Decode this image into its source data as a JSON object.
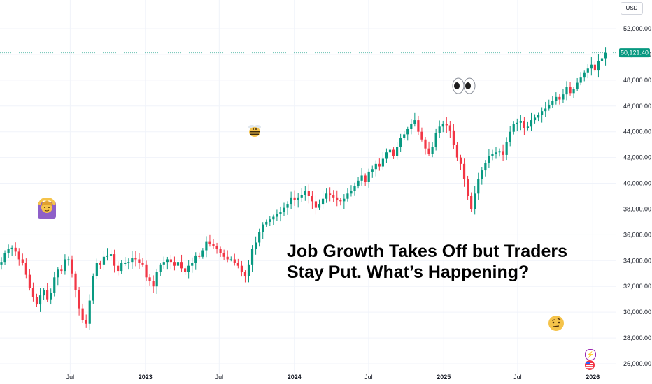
{
  "headline": {
    "line1": "Job Growth Takes Off but Traders",
    "line2": "Stay Put. What’s Happening?"
  },
  "price_scale": {
    "currency": "USD",
    "last_price_label": "50,121.40",
    "last_price_color": "#089981"
  },
  "colors": {
    "up": "#089981",
    "down": "#f23645",
    "grid": "#f0f3fa",
    "price_line": "#089981"
  },
  "emojis": {
    "woman_gesturing_ok": "🙆",
    "bee": "🐝",
    "eyes": "👀",
    "face_with_raised_eyebrow": "🤨"
  },
  "badges": {
    "lightning_icon": "⚡",
    "us_flag_icon": "flag-us"
  },
  "chart_data": {
    "type": "candlestick",
    "y_ticks": [
      "52,000.00",
      "50,000.00",
      "48,000.00",
      "46,000.00",
      "44,000.00",
      "42,000.00",
      "40,000.00",
      "38,000.00",
      "36,000.00",
      "34,000.00",
      "32,000.00",
      "30,000.00",
      "28,000.00",
      "26,000.00"
    ],
    "ylim": [
      25500,
      53200
    ],
    "x_ticks": [
      {
        "label": "Jul",
        "date": "2022-07-01",
        "bold": false
      },
      {
        "label": "2023",
        "date": "2023-01-01",
        "bold": true
      },
      {
        "label": "Jul",
        "date": "2023-07-01",
        "bold": false
      },
      {
        "label": "2024",
        "date": "2024-01-01",
        "bold": true
      },
      {
        "label": "Jul",
        "date": "2024-07-01",
        "bold": false
      },
      {
        "label": "2025",
        "date": "2025-01-01",
        "bold": true
      },
      {
        "label": "Jul",
        "date": "2025-07-01",
        "bold": false
      },
      {
        "label": "2026",
        "date": "2026-01-01",
        "bold": true
      }
    ],
    "last_value": 50121.4,
    "weekly_closes": [
      33900,
      34600,
      34900,
      35000,
      34700,
      34100,
      33800,
      32900,
      31900,
      31200,
      30600,
      31300,
      31700,
      31000,
      31500,
      32700,
      33300,
      33200,
      34100,
      34100,
      33000,
      31700,
      30300,
      29400,
      29100,
      30900,
      32800,
      33800,
      33700,
      34300,
      34400,
      34500,
      33600,
      33200,
      33800,
      33800,
      33900,
      34200,
      34100,
      33800,
      33700,
      32700,
      32400,
      32000,
      33100,
      33700,
      33900,
      34100,
      33900,
      33600,
      33900,
      33400,
      33100,
      33600,
      33800,
      34400,
      34300,
      34800,
      35500,
      35300,
      35100,
      34900,
      34600,
      34300,
      34100,
      34100,
      33800,
      33600,
      33100,
      32800,
      33700,
      34900,
      35400,
      36200,
      36800,
      37000,
      37200,
      37400,
      37600,
      37800,
      38100,
      38400,
      38900,
      38700,
      38900,
      39100,
      39400,
      39000,
      38600,
      38100,
      38400,
      38800,
      39200,
      39100,
      38900,
      38700,
      38600,
      38800,
      39200,
      39400,
      39800,
      40200,
      40600,
      40100,
      40900,
      41100,
      41500,
      41300,
      41900,
      42400,
      42600,
      42100,
      42800,
      43500,
      43800,
      44200,
      44600,
      44900,
      44000,
      43400,
      42700,
      42300,
      42800,
      43900,
      44400,
      44600,
      44500,
      44100,
      43000,
      42000,
      41500,
      40300,
      39000,
      38000,
      39200,
      40300,
      41000,
      41600,
      42100,
      42300,
      42400,
      42500,
      42200,
      43200,
      44000,
      44600,
      44700,
      44800,
      44300,
      44400,
      44900,
      45100,
      45300,
      45600,
      45800,
      46100,
      46400,
      46700,
      46500,
      46900,
      47500,
      47000,
      47300,
      47800,
      48200,
      48600,
      48900,
      49200,
      48800,
      49500,
      49700,
      50121.4
    ]
  }
}
